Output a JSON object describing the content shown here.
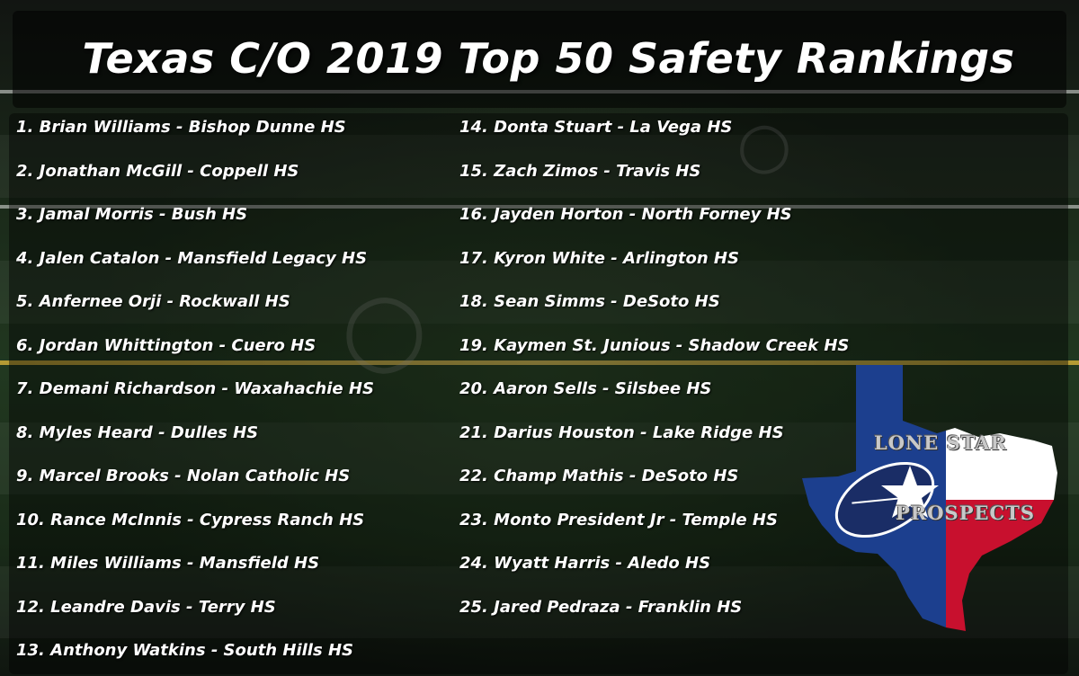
{
  "title": "Texas C/O 2019 Top 50 Safety Rankings",
  "left_column": [
    "1. Brian Williams - Bishop Dunne HS",
    "2. Jonathan McGill - Coppell HS",
    "3. Jamal Morris - Bush HS",
    "4. Jalen Catalon - Mansfield Legacy HS",
    "5. Anfernee Orji - Rockwall HS",
    "6. Jordan Whittington - Cuero HS",
    "7. Demani Richardson - Waxahachie HS",
    "8. Myles Heard - Dulles HS",
    "9. Marcel Brooks - Nolan Catholic HS",
    "10. Rance McInnis - Cypress Ranch HS",
    "11. Miles Williams - Mansfield HS",
    "12. Leandre Davis - Terry HS",
    "13. Anthony Watkins - South Hills HS"
  ],
  "right_column": [
    "14. Donta Stuart - La Vega HS",
    "15. Zach Zimos - Travis HS",
    "16. Jayden Horton - North Forney HS",
    "17. Kyron White - Arlington HS",
    "18. Sean Simms - DeSoto HS",
    "19. Kaymen St. Junious - Shadow Creek HS",
    "20. Aaron Sells - Silsbee HS",
    "21. Darius Houston - Lake Ridge HS",
    "22. Champ Mathis - DeSoto HS",
    "23. Monto President Jr - Temple HS",
    "24. Wyatt Harris - Aledo HS",
    "25. Jared Pedraza - Franklin HS"
  ],
  "logo": {
    "line1": "LONE STAR",
    "line2": "PROSPECTS",
    "icon": "texas-flag-football-icon"
  },
  "colors": {
    "flag_blue": "#1c3f8e",
    "flag_red": "#c8102e",
    "flag_white": "#ffffff",
    "field_green": "#213820",
    "text": "#ffffff"
  }
}
